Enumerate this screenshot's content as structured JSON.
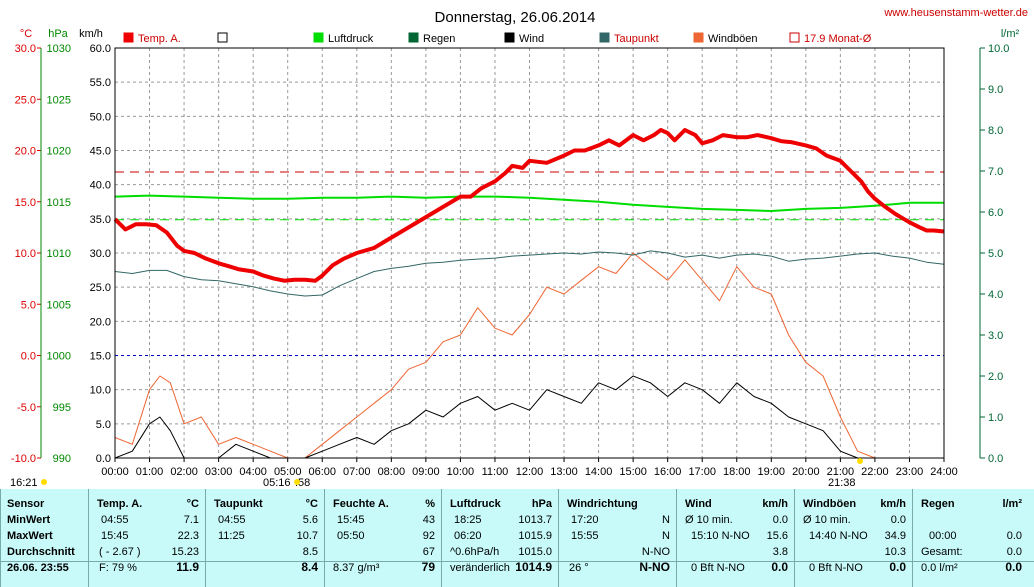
{
  "title": "Donnerstag, 26.06.2014",
  "site": "www.heusenstamm-wetter.de",
  "colors": {
    "temp": "#ee0000",
    "pressure": "#00dd00",
    "rain": "#006633",
    "wind": "#000000",
    "dewpoint": "#336666",
    "gust": "#ee6633",
    "month_avg": "#cc0000",
    "frost": "#0000cc",
    "axis_temp": "#dd0000",
    "axis_pressure": "#008800",
    "axis_rain": "#006633",
    "grid": "#999999",
    "panel_bg": "#c8fafa"
  },
  "axes": {
    "temp_unit": "°C",
    "pressure_unit": "hPa",
    "wind_unit": "km/h",
    "rain_unit": "l/m²",
    "temp_ticks": [
      "30.0",
      "25.0",
      "20.0",
      "15.0",
      "10.0",
      "5.0",
      "0.0",
      "-5.0",
      "-10.0"
    ],
    "pressure_ticks": [
      "1030",
      "1025",
      "1020",
      "1015",
      "1010",
      "1005",
      "1000",
      "995",
      "990"
    ],
    "wind_ticks": [
      "60.0",
      "55.0",
      "50.0",
      "45.0",
      "40.0",
      "35.0",
      "30.0",
      "25.0",
      "20.0",
      "15.0",
      "10.0",
      "5.0",
      "0.0"
    ],
    "rain_ticks": [
      "10.0",
      "9.0",
      "8.0",
      "7.0",
      "6.0",
      "5.0",
      "4.0",
      "3.0",
      "2.0",
      "1.0",
      "0.0"
    ],
    "time_ticks": [
      "00:00",
      "01:00",
      "02:00",
      "03:00",
      "04:00",
      "05:00",
      "06:00",
      "07:00",
      "08:00",
      "09:00",
      "10:00",
      "11:00",
      "12:00",
      "13:00",
      "14:00",
      "15:00",
      "16:00",
      "17:00",
      "18:00",
      "19:00",
      "20:00",
      "21:00",
      "22:00",
      "23:00",
      "24:00"
    ]
  },
  "legend": [
    {
      "label": "Temp. A.",
      "color": "#ee0000",
      "style": "filled"
    },
    {
      "label": "",
      "color": "#000000",
      "style": "hollow"
    },
    {
      "label": "Luftdruck",
      "color": "#00dd00",
      "style": "filled"
    },
    {
      "label": "Regen",
      "color": "#006633",
      "style": "filled"
    },
    {
      "label": "Wind",
      "color": "#000000",
      "style": "filled"
    },
    {
      "label": "Taupunkt",
      "color": "#336666",
      "style": "filled"
    },
    {
      "label": "Windböen",
      "color": "#ee6633",
      "style": "filled"
    },
    {
      "label": "17.9 Monat-Ø",
      "color": "#cc0000",
      "style": "hollow"
    }
  ],
  "annotations": {
    "sunrise_left": "05:16",
    "sunrise_right": ":58",
    "sunset": "21:38",
    "corner_time": "16:21"
  },
  "chart_data": {
    "type": "line",
    "title": "Donnerstag, 26.06.2014",
    "xlabel": "",
    "ylabel": "°C",
    "x_unit": "hour of day",
    "xlim": [
      0,
      24
    ],
    "ylim_temp": [
      -10,
      30
    ],
    "ylim_pressure": [
      990,
      1030
    ],
    "ylim_wind": [
      0,
      60
    ],
    "ylim_rain": [
      0,
      10
    ],
    "grid": true,
    "reference_lines": {
      "month_avg_temp": 17.9,
      "frost_line_temp": 0.0,
      "pressure_reference": 1013.25
    },
    "series": [
      {
        "name": "Temp. A.",
        "axis": "temp",
        "x": [
          0,
          0.3,
          0.6,
          0.9,
          1.2,
          1.5,
          1.8,
          2.0,
          2.3,
          2.6,
          3.0,
          3.3,
          3.6,
          4.0,
          4.3,
          4.6,
          4.9,
          5.2,
          5.5,
          5.8,
          6.0,
          6.3,
          6.6,
          7.0,
          7.5,
          8.0,
          8.5,
          9.0,
          9.5,
          10.0,
          10.3,
          10.6,
          11.0,
          11.3,
          11.5,
          11.8,
          12.0,
          12.5,
          13.0,
          13.3,
          13.6,
          14.0,
          14.3,
          14.6,
          15.0,
          15.3,
          15.6,
          15.8,
          16.0,
          16.2,
          16.5,
          16.8,
          17.0,
          17.3,
          17.6,
          18.0,
          18.3,
          18.6,
          19.0,
          19.3,
          19.6,
          20.0,
          20.3,
          20.6,
          21.0,
          21.3,
          21.6,
          21.8,
          22.0,
          22.3,
          22.6,
          23.0,
          23.3,
          23.5,
          23.7,
          24.0
        ],
        "y": [
          13.3,
          12.3,
          12.8,
          12.8,
          12.7,
          12.0,
          10.7,
          10.2,
          10.0,
          9.5,
          9.0,
          8.7,
          8.4,
          8.2,
          7.8,
          7.5,
          7.3,
          7.4,
          7.4,
          7.3,
          7.8,
          8.8,
          9.4,
          10.0,
          10.5,
          11.5,
          12.5,
          13.5,
          14.5,
          15.5,
          15.5,
          16.3,
          17.0,
          17.8,
          18.5,
          18.3,
          19.0,
          18.8,
          19.5,
          20.0,
          20.0,
          20.5,
          21.0,
          20.5,
          21.5,
          21.0,
          21.5,
          22.0,
          21.7,
          21.0,
          22.0,
          21.5,
          20.7,
          21.0,
          21.5,
          21.3,
          21.3,
          21.5,
          21.2,
          20.9,
          20.8,
          20.5,
          20.2,
          19.5,
          19.0,
          18.0,
          17.0,
          16.0,
          15.3,
          14.5,
          13.8,
          13.0,
          12.5,
          12.2,
          12.2,
          12.1
        ]
      },
      {
        "name": "Luftdruck",
        "axis": "pressure",
        "x": [
          0,
          1,
          2,
          3,
          4,
          5,
          6,
          7,
          8,
          9,
          10,
          11,
          12,
          13,
          14,
          15,
          16,
          17,
          18,
          19,
          20,
          21,
          22,
          23,
          24
        ],
        "y": [
          1015.5,
          1015.6,
          1015.5,
          1015.4,
          1015.3,
          1015.3,
          1015.4,
          1015.4,
          1015.5,
          1015.4,
          1015.5,
          1015.5,
          1015.4,
          1015.2,
          1015.0,
          1014.7,
          1014.5,
          1014.3,
          1014.2,
          1014.1,
          1014.3,
          1014.4,
          1014.6,
          1014.9,
          1014.9
        ]
      },
      {
        "name": "Taupunkt",
        "axis": "temp",
        "x": [
          0,
          0.5,
          1,
          1.5,
          2,
          2.5,
          3,
          3.5,
          4,
          4.5,
          5,
          5.5,
          6,
          6.5,
          7,
          7.5,
          8,
          8.5,
          9,
          9.5,
          10,
          10.5,
          11,
          11.5,
          12,
          12.5,
          13,
          13.5,
          14,
          14.5,
          15,
          15.5,
          16,
          16.5,
          17,
          17.5,
          18,
          18.5,
          19,
          19.5,
          20,
          20.5,
          21,
          21.5,
          22,
          22.5,
          23,
          23.5,
          24
        ],
        "y": [
          8.2,
          8.0,
          8.3,
          8.3,
          7.7,
          7.4,
          7.3,
          7.0,
          6.7,
          6.3,
          6.0,
          5.8,
          5.9,
          6.8,
          7.5,
          8.2,
          8.5,
          8.7,
          9.0,
          9.1,
          9.3,
          9.4,
          9.5,
          9.7,
          9.8,
          9.9,
          10.0,
          9.9,
          10.1,
          10.0,
          9.8,
          10.2,
          10.0,
          9.6,
          9.8,
          9.5,
          9.8,
          9.9,
          9.7,
          9.2,
          9.4,
          9.5,
          9.7,
          9.9,
          10.0,
          9.7,
          9.5,
          9.1,
          8.9
        ]
      },
      {
        "name": "Wind",
        "axis": "wind",
        "x": [
          0,
          0.5,
          1,
          1.3,
          1.6,
          2,
          2.5,
          3,
          3.5,
          4,
          4.5,
          5,
          5.5,
          6,
          6.5,
          7,
          7.5,
          8,
          8.5,
          9,
          9.5,
          10,
          10.5,
          11,
          11.5,
          12,
          12.5,
          13,
          13.5,
          14,
          14.5,
          15,
          15.5,
          16,
          16.5,
          17,
          17.5,
          18,
          18.5,
          19,
          19.5,
          20,
          20.5,
          21,
          21.5,
          22,
          22.5,
          23,
          23.5,
          24
        ],
        "y": [
          0,
          1,
          5,
          6,
          4,
          0,
          0,
          0,
          2,
          1,
          0,
          0,
          0,
          1,
          2,
          3,
          2,
          4,
          5,
          7,
          6,
          8,
          9,
          7,
          8,
          7,
          10,
          9,
          8,
          11,
          10,
          12,
          11,
          9,
          11,
          10,
          8,
          11,
          9,
          8,
          6,
          5,
          4,
          1,
          0,
          0,
          0,
          0,
          0,
          0
        ]
      },
      {
        "name": "Windböen",
        "axis": "wind",
        "x": [
          0,
          0.5,
          1,
          1.3,
          1.6,
          2,
          2.5,
          3,
          3.5,
          4,
          4.5,
          5,
          5.5,
          6,
          6.5,
          7,
          7.5,
          8,
          8.5,
          9,
          9.5,
          10,
          10.5,
          11,
          11.5,
          12,
          12.5,
          13,
          13.5,
          14,
          14.5,
          15,
          15.5,
          16,
          16.5,
          17,
          17.5,
          18,
          18.5,
          19,
          19.5,
          20,
          20.5,
          21,
          21.5,
          22,
          22.5,
          23,
          23.5,
          24
        ],
        "y": [
          3,
          2,
          10,
          12,
          11,
          5,
          6,
          2,
          3,
          2,
          1,
          0,
          0,
          2,
          4,
          6,
          8,
          10,
          13,
          14,
          17,
          18,
          22,
          19,
          18,
          21,
          25,
          24,
          26,
          28,
          27,
          30,
          28,
          26,
          29,
          26,
          23,
          28,
          25,
          24,
          18,
          14,
          12,
          6,
          1,
          0,
          0,
          0,
          0,
          0
        ]
      }
    ]
  },
  "stats": {
    "sensor": {
      "header": "Sensor",
      "rows": [
        "MinWert",
        "MaxWert",
        "Durchschnitt"
      ],
      "footer": "26.06. 23:55"
    },
    "temp": {
      "header": "Temp. A.",
      "unit": "°C",
      "rows": [
        [
          "04:55",
          "7.1"
        ],
        [
          "15:45",
          "22.3"
        ],
        [
          "( - 2.67 )",
          "15.23"
        ]
      ],
      "footer": [
        "F: 79 %",
        "11.9"
      ]
    },
    "dew": {
      "header": "Taupunkt",
      "unit": "°C",
      "rows": [
        [
          "04:55",
          "5.6"
        ],
        [
          "11:25",
          "10.7"
        ],
        [
          "",
          "8.5"
        ]
      ],
      "footer": [
        "",
        "8.4"
      ]
    },
    "humidity": {
      "header": "Feuchte A.",
      "unit": "%",
      "rows": [
        [
          "15:45",
          "43"
        ],
        [
          "05:50",
          "92"
        ],
        [
          "",
          "67"
        ]
      ],
      "footer": [
        "8.37 g/m³",
        "79"
      ]
    },
    "pressure": {
      "header": "Luftdruck",
      "unit": "hPa",
      "rows": [
        [
          "18:25",
          "1013.7"
        ],
        [
          "06:20",
          "1015.9"
        ],
        [
          "^0.6hPa/h",
          "1015.0"
        ]
      ],
      "footer": [
        "veränderlich",
        "1014.9"
      ]
    },
    "direction": {
      "header": "Windrichtung",
      "unit": "",
      "rows": [
        [
          "17:20",
          "N"
        ],
        [
          "15:55",
          "N"
        ],
        [
          "",
          "N-NO"
        ]
      ],
      "footer": [
        "26 °",
        "N-NO"
      ]
    },
    "wind": {
      "header": "Wind",
      "unit": "km/h",
      "rows": [
        [
          "Ø 10 min.",
          "0.0"
        ],
        [
          "15:10 N-NO",
          "15.6"
        ],
        [
          "",
          "3.8"
        ]
      ],
      "footer": [
        "0 Bft N-NO",
        "0.0"
      ]
    },
    "gust": {
      "header": "Windböen",
      "unit": "km/h",
      "rows": [
        [
          "Ø 10 min.",
          "0.0"
        ],
        [
          "14:40 N-NO",
          "34.9"
        ],
        [
          "",
          "10.3"
        ]
      ],
      "footer": [
        "0 Bft N-NO",
        "0.0"
      ]
    },
    "rain": {
      "header": "Regen",
      "unit": "l/m²",
      "rows": [
        [
          "00:00",
          "0.0"
        ],
        [
          "Gesamt:",
          "0.0"
        ]
      ],
      "footer": [
        "0.0 l/m²",
        "0.0"
      ]
    }
  }
}
